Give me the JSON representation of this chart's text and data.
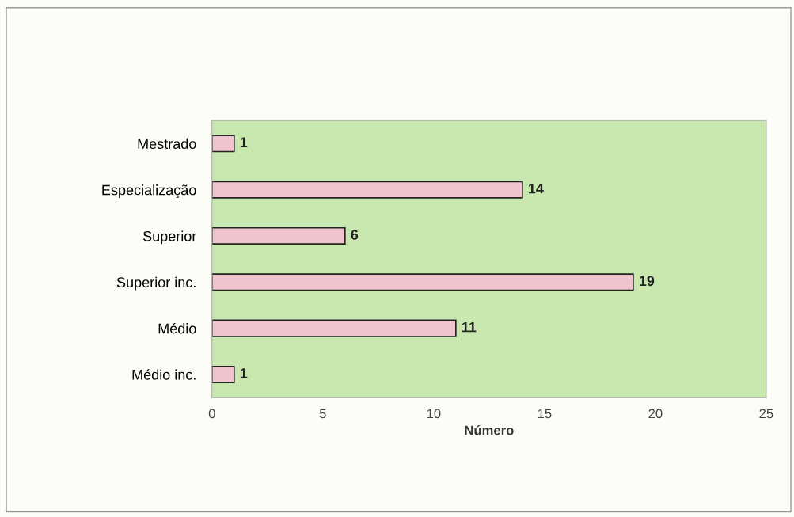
{
  "chart_data": {
    "type": "bar",
    "orientation": "horizontal",
    "xlabel": "Número",
    "categories": [
      "Mestrado",
      "Especialização",
      "Superior",
      "Superior inc.",
      "Médio",
      "Médio inc."
    ],
    "values": [
      1,
      14,
      6,
      19,
      11,
      1
    ],
    "color": "#f0c4cc",
    "xlim": [
      0,
      25
    ],
    "xticks": [
      0,
      5,
      10,
      15,
      20,
      25
    ],
    "grid": false,
    "legend": false,
    "data_labels": true
  }
}
